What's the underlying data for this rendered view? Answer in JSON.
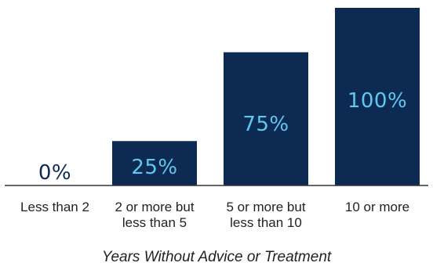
{
  "chart_data": {
    "type": "bar",
    "categories": [
      [
        "Less than 2"
      ],
      [
        "2 or more but",
        "less than 5"
      ],
      [
        "5 or more but",
        "less than 10"
      ],
      [
        "10 or more"
      ]
    ],
    "values": [
      0,
      25,
      75,
      100
    ],
    "value_labels": [
      "0%",
      "25%",
      "75%",
      "100%"
    ],
    "title": "",
    "xlabel": "Years Without Advice or Treatment",
    "ylabel": "",
    "ylim": [
      0,
      100
    ],
    "grid": false,
    "legend": "none",
    "colors": {
      "bar": "#0d2a52",
      "label_on_bar": "#5ec8f0",
      "label_off_bar": "#0d2a52",
      "text": "#222222"
    }
  }
}
